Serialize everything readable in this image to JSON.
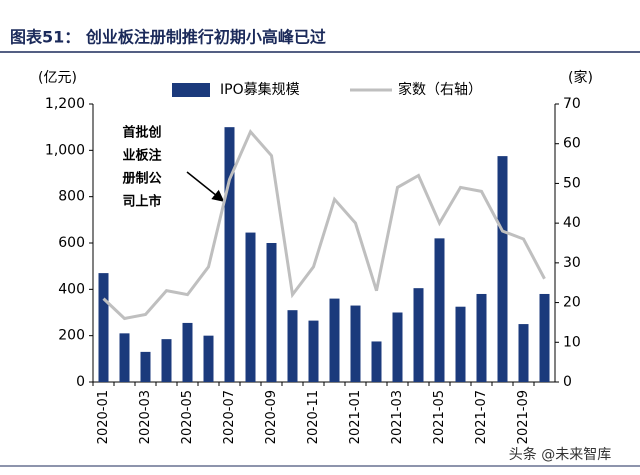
{
  "chart_data": {
    "type": "bar-line",
    "title": "图表51：  创业板注册制推行初期小高峰已过",
    "y_label": "(亿元)",
    "y2_label": "(家)",
    "categories": [
      "2020-01",
      null,
      "2020-03",
      null,
      "2020-05",
      null,
      "2020-07",
      null,
      "2020-09",
      null,
      "2020-11",
      null,
      "2021-01",
      null,
      "2021-03",
      null,
      "2021-05",
      null,
      "2021-07",
      null,
      "2021-09",
      null
    ],
    "series": [
      {
        "name": "IPO募集规模",
        "color": "#1b3a7c",
        "kind": "bar",
        "axis": "y",
        "values": [
          470,
          210,
          130,
          185,
          255,
          200,
          1100,
          645,
          600,
          310,
          265,
          360,
          330,
          175,
          300,
          405,
          620,
          325,
          380,
          975,
          250,
          380
        ]
      },
      {
        "name": "家数（右轴）",
        "color": "#bfbfbf",
        "kind": "line",
        "axis": "y2",
        "values": [
          21,
          16,
          17,
          23,
          22,
          29,
          51,
          63,
          57,
          22,
          29,
          46,
          40,
          23,
          49,
          52,
          40,
          49,
          48,
          38,
          36,
          26
        ]
      }
    ],
    "ylim": [
      0,
      1200
    ],
    "yticks": [
      0,
      200,
      400,
      600,
      800,
      {
        "value": 1000,
        "label": "1,000"
      },
      {
        "value": 1200,
        "label": "1,200"
      }
    ],
    "y2lim": [
      0,
      70
    ],
    "y2ticks": [
      0,
      10,
      20,
      30,
      40,
      50,
      60,
      70
    ],
    "annotation": [
      "首批创",
      "业板注",
      "册制公",
      "司上市"
    ],
    "watermark": "头条 @未来智库"
  }
}
